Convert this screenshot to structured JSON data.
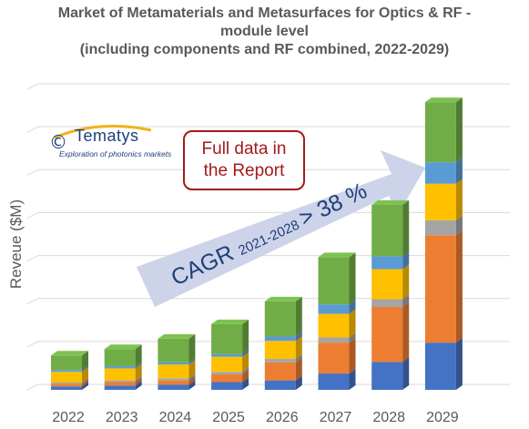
{
  "title_lines": [
    "Market of Metamaterials and Metasurfaces for Optics & RF -",
    "module level",
    "(including components and RF combined, 2022-2029)"
  ],
  "logo": {
    "symbol": "©",
    "name": "Tematys",
    "tagline": "Exploration of photonics markets"
  },
  "callout": "Full data in\nthe Report",
  "cagr": {
    "prefix": "CAGR",
    "period": "2021-2028",
    "suffix": "> 38 %"
  },
  "colors": {
    "axis_text": "#595959",
    "gridline": "#d9d9d9",
    "arrow": "#cdd3e8",
    "callout_border": "#a31a1a",
    "series": [
      "#4472c4",
      "#ed7d31",
      "#a5a5a5",
      "#ffc000",
      "#5b9bd5",
      "#70ad47"
    ]
  },
  "chart_data": {
    "type": "bar",
    "stacked": true,
    "categories": [
      "2022",
      "2023",
      "2024",
      "2025",
      "2026",
      "2027",
      "2028",
      "2029"
    ],
    "ylabel": "Reveue ($M)",
    "ylim": [
      0,
      7
    ],
    "y_tick_labels_shown": false,
    "grid": true,
    "series": [
      {
        "values": [
          0.08,
          0.1,
          0.12,
          0.18,
          0.22,
          0.38,
          0.65,
          1.1
        ]
      },
      {
        "values": [
          0.06,
          0.08,
          0.1,
          0.18,
          0.42,
          0.72,
          1.28,
          2.5
        ]
      },
      {
        "values": [
          0.03,
          0.04,
          0.05,
          0.06,
          0.08,
          0.12,
          0.18,
          0.35
        ]
      },
      {
        "values": [
          0.25,
          0.28,
          0.32,
          0.35,
          0.42,
          0.55,
          0.7,
          0.85
        ]
      },
      {
        "values": [
          0.04,
          0.05,
          0.05,
          0.06,
          0.1,
          0.22,
          0.3,
          0.5
        ]
      },
      {
        "values": [
          0.34,
          0.4,
          0.55,
          0.7,
          0.82,
          1.1,
          1.2,
          1.4
        ]
      }
    ]
  }
}
